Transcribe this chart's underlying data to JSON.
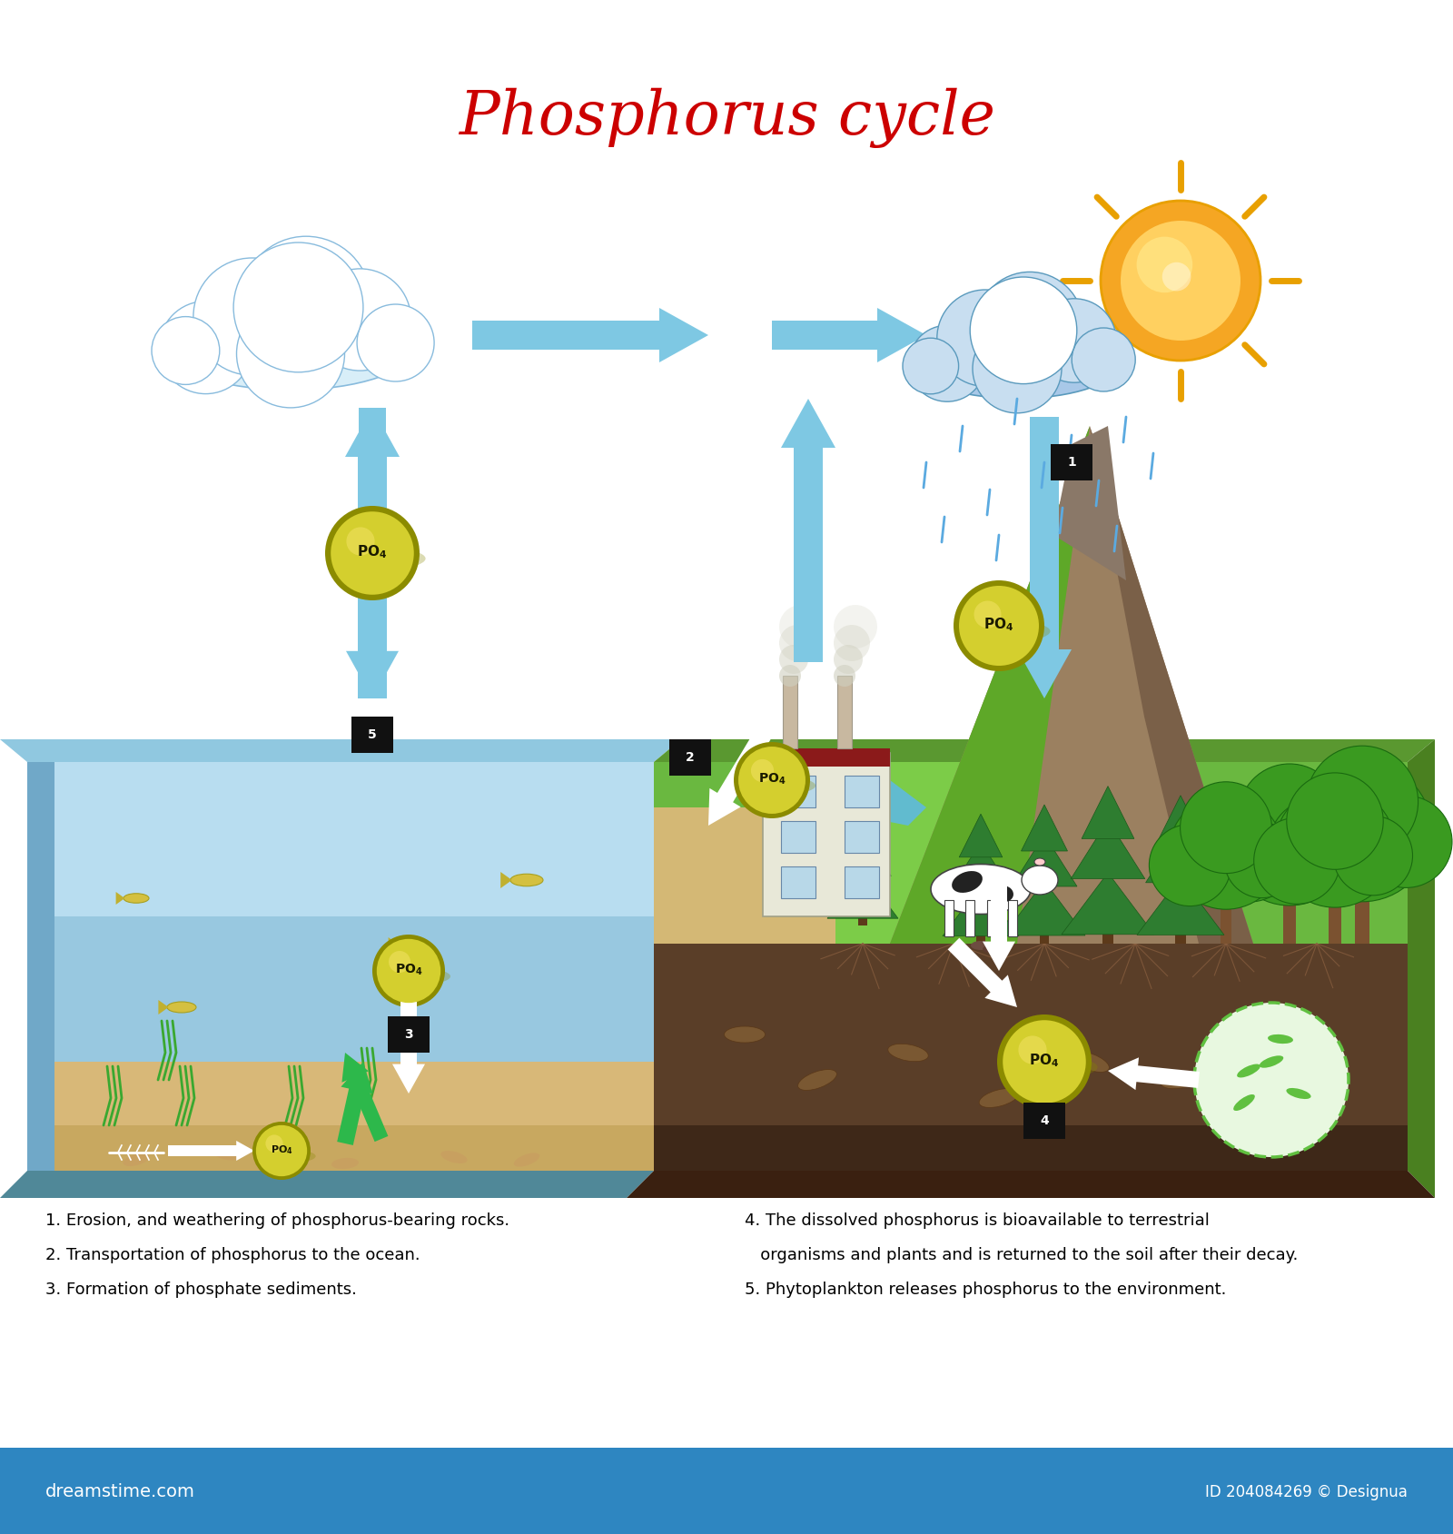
{
  "title": "Phosphorus cycle",
  "title_color": "#CC0000",
  "title_fontsize": 48,
  "bg_color": "#FFFFFF",
  "footer_bg": "#2E86C1",
  "footer_text_left": "dreamstime.com",
  "footer_text_right": "ID 204084269 © Designua",
  "po4_color": "#D4CF2E",
  "po4_border": "#8B8B00",
  "po4_shadow": "#9B9B00",
  "arrow_blue": "#7EC8E3",
  "arrow_white": "#FFFFFF",
  "arrow_green": "#2DB84B",
  "water_top": "#B8DDF0",
  "water_mid": "#A0C8E8",
  "water_bot": "#85B8D8",
  "sand_color": "#D4B483",
  "soil_dark": "#5A3E28",
  "soil_mid": "#4A3020",
  "ground_green": "#6AB840",
  "ground_side": "#3A8020",
  "mtn_color": "#8B7355",
  "mtn_dark": "#6B5540",
  "river_color": "#5DADE2",
  "tree_trunk": "#6B4423",
  "tree_green1": "#2E8B2E",
  "tree_green2": "#1A6B1A",
  "caption_fontsize": 13,
  "left_captions": [
    "1. Erosion, and weathering of phosphorus-bearing rocks.",
    "2. Transportation of phosphorus to the ocean.",
    "3. Formation of phosphate sediments."
  ],
  "right_captions": [
    "4. The dissolved phosphorus is bioavailable to terrestrial",
    "   organisms and plants and is returned to the soil after their decay.",
    "5. Phytoplankton releases phosphorus to the environment."
  ]
}
